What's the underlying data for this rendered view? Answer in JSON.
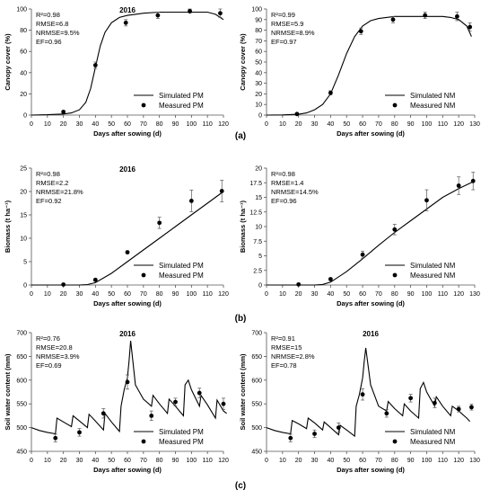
{
  "figure": {
    "panel_labels": [
      "(a)",
      "(b)",
      "(c)"
    ]
  },
  "chart_data": [
    {
      "type": "line",
      "title": "2016",
      "xlabel": "Days after sowing (d)",
      "ylabel": "Canopy cover (%)",
      "xlim": [
        0,
        120
      ],
      "ylim": [
        0,
        100
      ],
      "xticks": [
        0,
        10,
        20,
        30,
        40,
        50,
        60,
        70,
        80,
        90,
        100,
        110,
        120
      ],
      "yticks": [
        0,
        20,
        40,
        60,
        80,
        100
      ],
      "stats": [
        "R²=0.98",
        "RMSE=6.8",
        "NRMSE=9.5%",
        "EF=0.96"
      ],
      "legend": {
        "position": "bottom-right"
      },
      "series": [
        {
          "name": "Simulated PM",
          "kind": "line",
          "x": [
            0,
            10,
            20,
            25,
            30,
            34,
            37,
            40,
            43,
            46,
            50,
            55,
            60,
            65,
            70,
            80,
            90,
            100,
            110,
            115,
            120
          ],
          "y": [
            0,
            0.3,
            1,
            2,
            5,
            12,
            25,
            45,
            65,
            78,
            87,
            92,
            94,
            95,
            96,
            97,
            97,
            97,
            97,
            95,
            90
          ]
        },
        {
          "name": "Measured PM",
          "kind": "scatter",
          "x": [
            20,
            40,
            59,
            79,
            99,
            118
          ],
          "y": [
            3,
            47,
            87,
            94,
            98,
            96
          ],
          "err": [
            1,
            3,
            3,
            3,
            2,
            4
          ]
        }
      ]
    },
    {
      "type": "line",
      "title": "",
      "xlabel": "Days after sowing (d)",
      "ylabel": "Canopy cover (%)",
      "xlim": [
        0,
        130
      ],
      "ylim": [
        0,
        100
      ],
      "xticks": [
        0,
        10,
        20,
        30,
        40,
        50,
        60,
        70,
        80,
        90,
        100,
        110,
        120,
        130
      ],
      "yticks": [
        0,
        10,
        20,
        30,
        40,
        50,
        60,
        70,
        80,
        90,
        100
      ],
      "stats": [
        "R²=0.99",
        "RMSE=5.9",
        "NRMSE=8.9%",
        "EF=0.97"
      ],
      "legend": {
        "position": "bottom-right"
      },
      "series": [
        {
          "name": "Simulated NM",
          "kind": "line",
          "x": [
            0,
            10,
            20,
            25,
            30,
            35,
            40,
            45,
            50,
            55,
            60,
            65,
            70,
            75,
            80,
            90,
            100,
            110,
            115,
            120,
            125,
            128
          ],
          "y": [
            0,
            0.2,
            0.8,
            2,
            5,
            10,
            20,
            38,
            58,
            74,
            84,
            89,
            91,
            92,
            93,
            93,
            93,
            93,
            92,
            90,
            84,
            74
          ]
        },
        {
          "name": "Measured NM",
          "kind": "scatter",
          "x": [
            19,
            40,
            59,
            79,
            99,
            119,
            127
          ],
          "y": [
            1,
            21,
            79,
            90,
            94,
            93,
            83
          ],
          "err": [
            1,
            2,
            3,
            3,
            3,
            4,
            4
          ]
        }
      ]
    },
    {
      "type": "line",
      "title": "2016",
      "xlabel": "Days after sowing (d)",
      "ylabel": "Biomass (t ha⁻¹)",
      "xlim": [
        0,
        120
      ],
      "ylim": [
        0,
        25
      ],
      "xticks": [
        0,
        10,
        20,
        30,
        40,
        50,
        60,
        70,
        80,
        90,
        100,
        110,
        120
      ],
      "yticks": [
        0,
        5,
        10,
        15,
        20,
        25
      ],
      "stats": [
        "R²=0.98",
        "RMSE=2.2",
        "NRMSE=21.8%",
        "EF=0.92"
      ],
      "legend": {
        "position": "bottom-right"
      },
      "series": [
        {
          "name": "Simulated PM",
          "kind": "line",
          "x": [
            0,
            20,
            30,
            35,
            40,
            50,
            60,
            70,
            80,
            90,
            100,
            110,
            120
          ],
          "y": [
            0,
            0,
            0,
            0.1,
            0.5,
            2.5,
            5,
            7.5,
            10,
            12.5,
            15,
            17.5,
            20
          ]
        },
        {
          "name": "Measured PM",
          "kind": "scatter",
          "x": [
            20,
            40,
            60,
            80,
            100,
            119
          ],
          "y": [
            0.1,
            1.1,
            7,
            13.3,
            18,
            20.1
          ],
          "err": [
            0.1,
            0.3,
            0.3,
            1.2,
            2.3,
            2.3
          ]
        }
      ]
    },
    {
      "type": "line",
      "title": "",
      "xlabel": "Days after sowing (d)",
      "ylabel": "Biomass (t ha⁻¹)",
      "xlim": [
        0,
        130
      ],
      "ylim": [
        0,
        20
      ],
      "xticks": [
        0,
        10,
        20,
        30,
        40,
        50,
        60,
        70,
        80,
        90,
        100,
        110,
        120,
        130
      ],
      "yticks": [
        0,
        2.5,
        5,
        7.5,
        10,
        12.5,
        15,
        17.5,
        20
      ],
      "ytick_labels": [
        "0",
        "2.5",
        "5",
        "7.5",
        "10",
        "12.5",
        "15",
        "17.5",
        "20"
      ],
      "stats": [
        "R²=0.98",
        "RMSE=1.4",
        "NRMSE=14.5%",
        "EF=0.96"
      ],
      "legend": {
        "position": "bottom-right"
      },
      "series": [
        {
          "name": "Simulated NM",
          "kind": "line",
          "x": [
            0,
            20,
            30,
            35,
            40,
            50,
            60,
            70,
            80,
            90,
            100,
            110,
            120,
            130
          ],
          "y": [
            0,
            0,
            0,
            0.1,
            0.5,
            2.3,
            4.5,
            6.8,
            9,
            11,
            13,
            15,
            16.5,
            17.8
          ]
        },
        {
          "name": "Measured NM",
          "kind": "scatter",
          "x": [
            20,
            40,
            60,
            80,
            100,
            120,
            129
          ],
          "y": [
            0.1,
            1,
            5.2,
            9.5,
            14.5,
            17,
            17.8
          ],
          "err": [
            0.1,
            0.2,
            0.6,
            0.9,
            1.8,
            1.5,
            1.5
          ]
        }
      ]
    },
    {
      "type": "line",
      "title": "2016",
      "xlabel": "Days after sowing (d)",
      "ylabel": "Soil water content (mm)",
      "xlim": [
        0,
        120
      ],
      "ylim": [
        450,
        700
      ],
      "xticks": [
        0,
        10,
        20,
        30,
        40,
        50,
        60,
        70,
        80,
        90,
        100,
        110,
        120
      ],
      "yticks": [
        450,
        500,
        550,
        600,
        650,
        700
      ],
      "stats": [
        "R²=0.76",
        "RMSE=20.8",
        "NRMSE=3.9%",
        "EF=0.69"
      ],
      "legend": {
        "position": "bottom-right"
      },
      "series": [
        {
          "name": "Simulated PM",
          "kind": "line",
          "x": [
            0,
            5,
            10,
            15,
            16,
            20,
            25,
            26,
            30,
            35,
            36,
            40,
            45,
            46,
            50,
            55,
            56,
            58,
            60,
            61,
            62,
            65,
            70,
            75,
            76,
            80,
            85,
            86,
            90,
            95,
            96,
            98,
            100,
            105,
            106,
            110,
            115,
            116,
            120,
            122
          ],
          "y": [
            500,
            494,
            490,
            487,
            520,
            512,
            502,
            525,
            514,
            500,
            528,
            514,
            495,
            530,
            512,
            492,
            545,
            580,
            605,
            640,
            683,
            590,
            560,
            545,
            568,
            550,
            530,
            560,
            545,
            525,
            590,
            600,
            580,
            545,
            568,
            548,
            520,
            558,
            535,
            530
          ]
        },
        {
          "name": "Measured PM",
          "kind": "scatter",
          "x": [
            15,
            30,
            45,
            60,
            75,
            90,
            105,
            120
          ],
          "y": [
            478,
            490,
            530,
            596,
            525,
            554,
            573,
            550
          ],
          "err": [
            8,
            8,
            10,
            15,
            10,
            8,
            10,
            12
          ]
        }
      ]
    },
    {
      "type": "line",
      "title": "2016",
      "xlabel": "Days after sowing (d)",
      "ylabel": "Soil water content (mm)",
      "xlim": [
        0,
        130
      ],
      "ylim": [
        450,
        700
      ],
      "xticks": [
        0,
        10,
        20,
        30,
        40,
        50,
        60,
        70,
        80,
        90,
        100,
        110,
        120,
        130
      ],
      "yticks": [
        450,
        500,
        550,
        600,
        650,
        700
      ],
      "stats": [
        "R²=0.91",
        "RMSE=15",
        "NRMSE=2.8%",
        "EF=0.78"
      ],
      "legend": {
        "position": "bottom-right"
      },
      "series": [
        {
          "name": "Simulated NM",
          "kind": "line",
          "x": [
            0,
            5,
            10,
            15,
            16,
            20,
            25,
            26,
            30,
            35,
            36,
            40,
            45,
            46,
            50,
            55,
            56,
            58,
            60,
            61,
            62,
            65,
            70,
            75,
            76,
            80,
            85,
            86,
            90,
            95,
            96,
            98,
            100,
            105,
            106,
            110,
            115,
            116,
            120,
            125,
            127
          ],
          "y": [
            500,
            494,
            490,
            487,
            515,
            508,
            498,
            520,
            510,
            495,
            512,
            500,
            485,
            505,
            495,
            482,
            545,
            570,
            605,
            640,
            668,
            590,
            545,
            535,
            555,
            540,
            525,
            550,
            535,
            520,
            582,
            595,
            575,
            545,
            565,
            545,
            525,
            545,
            535,
            520,
            513
          ]
        },
        {
          "name": "Measured NM",
          "kind": "scatter",
          "x": [
            15,
            30,
            45,
            60,
            75,
            90,
            105,
            120,
            128
          ],
          "y": [
            478,
            487,
            500,
            570,
            530,
            562,
            552,
            539,
            543
          ],
          "err": [
            8,
            8,
            10,
            12,
            8,
            8,
            10,
            6,
            6
          ]
        }
      ]
    }
  ]
}
